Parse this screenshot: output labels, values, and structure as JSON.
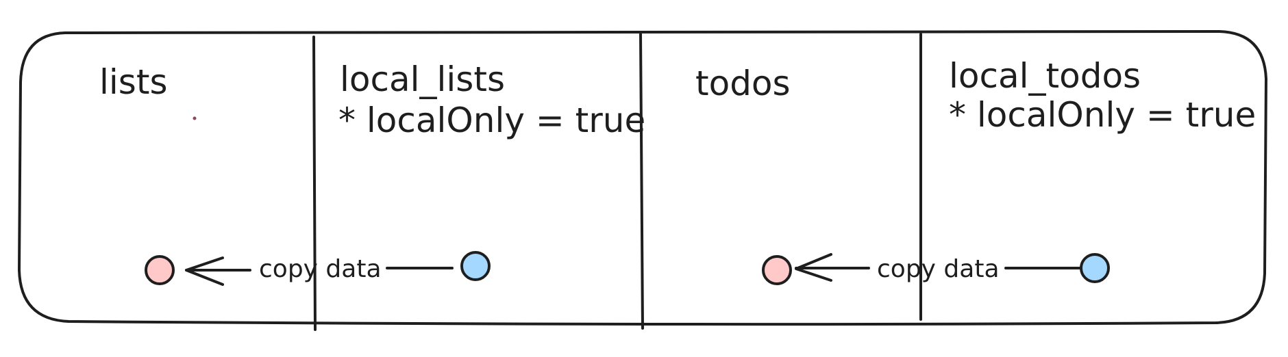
{
  "diagram": {
    "sections": [
      {
        "title": "lists",
        "note": ""
      },
      {
        "title": "local_lists",
        "note": "* localOnly = true"
      },
      {
        "title": "todos",
        "note": ""
      },
      {
        "title": "local_todos",
        "note": "* localOnly = true"
      }
    ],
    "edges": [
      {
        "from": "local_lists",
        "to": "lists",
        "label": "copy data"
      },
      {
        "from": "local_todos",
        "to": "todos",
        "label": "copy data"
      }
    ],
    "colors": {
      "stroke": "#1e1e1e",
      "target_node_fill": "#ffc9c9",
      "source_node_fill": "#a5d8ff"
    }
  }
}
